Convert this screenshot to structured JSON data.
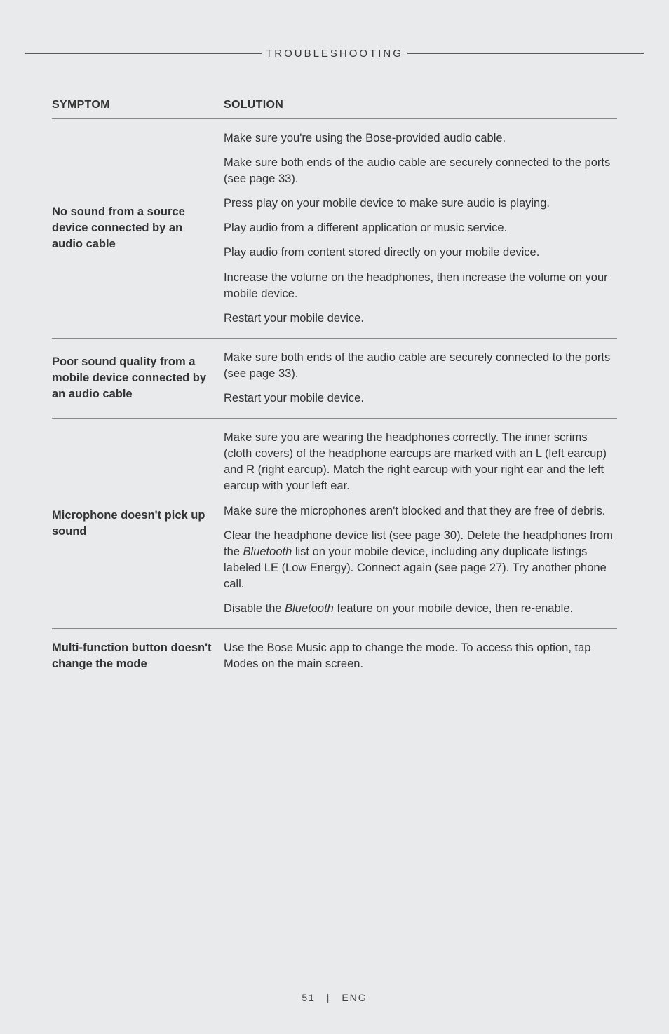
{
  "header": {
    "title": "TROUBLESHOOTING"
  },
  "table": {
    "headers": {
      "symptom": "SYMPTOM",
      "solution": "SOLUTION"
    },
    "rows": [
      {
        "symptom": "No sound from a source device connected by an audio cable",
        "solutions": [
          "Make sure you're using the Bose-provided audio cable.",
          "Make sure both ends of the audio cable are securely connected to the ports (see page 33).",
          "Press play on your mobile device to make sure audio is playing.",
          "Play audio from a different application or music service.",
          "Play audio from content stored directly on your mobile device.",
          "Increase the volume on the headphones, then increase the volume on your mobile device.",
          "Restart your mobile device."
        ]
      },
      {
        "symptom": "Poor sound quality from a mobile device connected by an audio cable",
        "solutions": [
          "Make sure both ends of the audio cable are securely connected to the ports (see page 33).",
          "Restart your mobile device."
        ]
      },
      {
        "symptom": "Microphone doesn't pick up sound",
        "solutions": [
          "Make sure you are wearing the headphones correctly. The inner scrims (cloth covers) of the headphone earcups are marked with an L (left earcup) and R (right earcup). Match the right earcup with your right ear and the left earcup with your left ear.",
          "Make sure the microphones aren't blocked and that they are free of debris.",
          "Clear the headphone device list (see page 30). Delete the headphones from the <span class=\"ital\">Bluetooth</span> list on your mobile device, including any duplicate listings labeled LE (Low Energy). Connect again (see page 27). Try another phone call.",
          "Disable the <span class=\"ital\">Bluetooth</span> feature on your mobile device, then re-enable."
        ]
      },
      {
        "symptom": "Multi-function button doesn't change the mode",
        "solutions": [
          "Use the Bose Music app to change the mode. To access this option, tap Modes on the main screen."
        ]
      }
    ]
  },
  "footer": {
    "page": "51",
    "lang": "ENG"
  }
}
